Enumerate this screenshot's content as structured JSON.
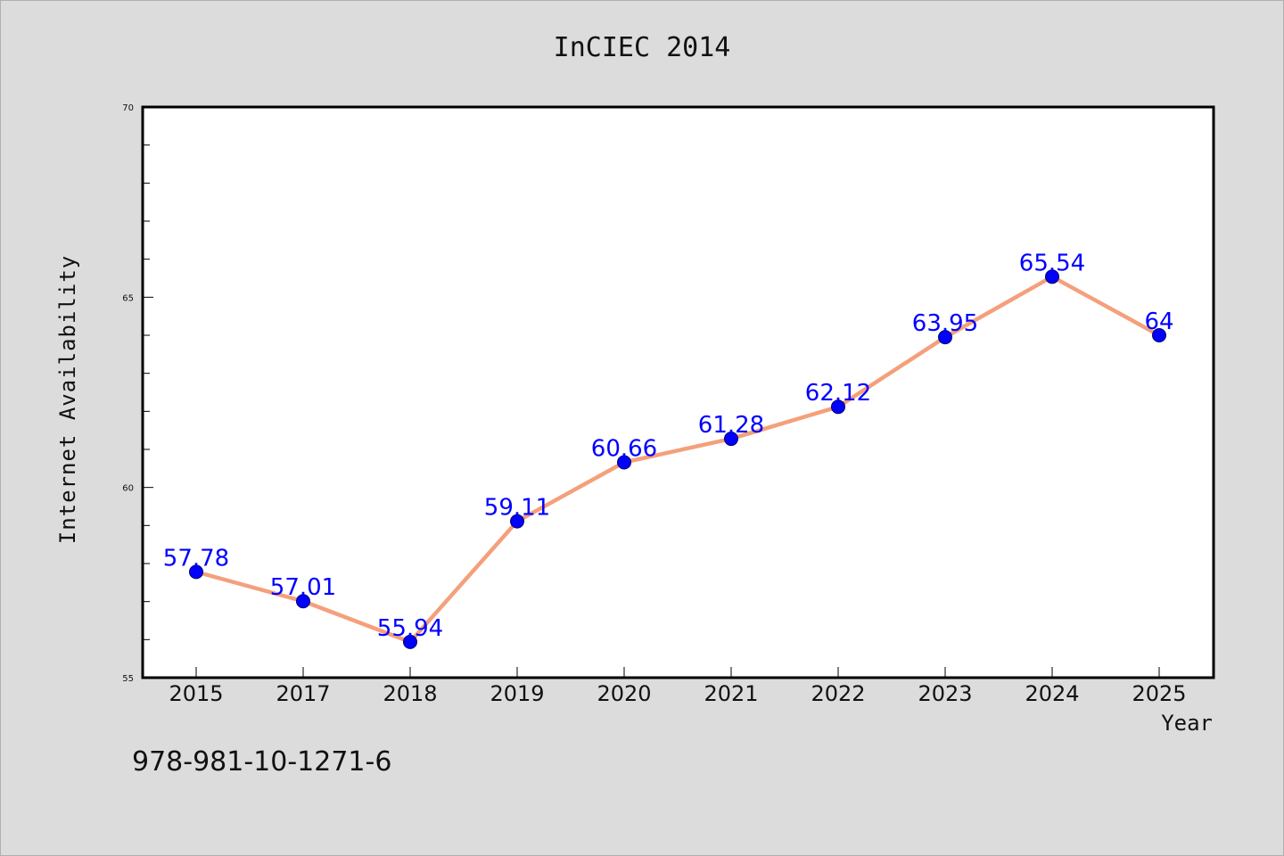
{
  "figure": {
    "footnote": "978-981-10-1271-6"
  },
  "chart_data": {
    "type": "line",
    "title": "InCIEC 2014",
    "xlabel": "Year",
    "ylabel": "Internet Availability",
    "categories": [
      "2015",
      "2017",
      "2018",
      "2019",
      "2020",
      "2021",
      "2022",
      "2023",
      "2024",
      "2025"
    ],
    "values": [
      57.78,
      57.01,
      55.94,
      59.11,
      60.66,
      61.28,
      62.12,
      63.95,
      65.54,
      64
    ],
    "data_labels": [
      "57.78",
      "57.01",
      "55.94",
      "59.11",
      "60.66",
      "61.28",
      "62.12",
      "63.95",
      "65.54",
      "64"
    ],
    "ylim": [
      55,
      70
    ],
    "yticks": [
      "55",
      "60",
      "65",
      "70"
    ],
    "grid": false,
    "legend": "none",
    "colors": {
      "line": "#f4a07c",
      "marker": "#0000ff",
      "marker_edge": "#000066",
      "data_label": "#0000ff",
      "plot_background": "#ffffff",
      "figure_background": "#dcdcdc"
    }
  }
}
